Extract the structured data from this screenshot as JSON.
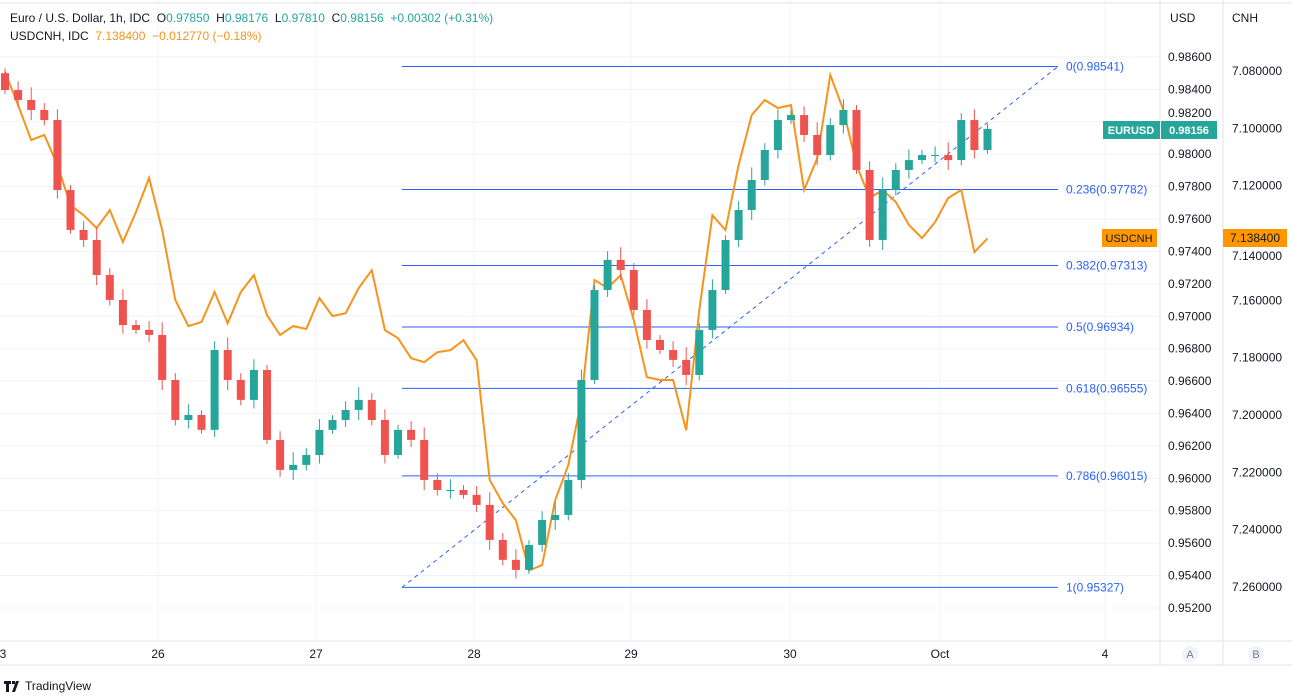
{
  "legend": {
    "main_title": "Euro / U.S. Dollar, 1h, IDC",
    "o_label": "O",
    "o_value": "0.97850",
    "h_label": "H",
    "h_value": "0.98176",
    "l_label": "L",
    "l_value": "0.97810",
    "c_label": "C",
    "c_value": "0.98156",
    "change": "+0.00302 (+0.31%)",
    "compare_title": "USDCNH, IDC",
    "compare_value": "7.138400",
    "compare_change": "−0.012770 (−0.18%)"
  },
  "axes": {
    "usd_label": "USD",
    "cnh_label": "CNH",
    "x_labels": [
      "3",
      "26",
      "27",
      "28",
      "29",
      "30",
      "Oct",
      "4"
    ],
    "scale_a": "A",
    "scale_b": "B"
  },
  "badges": {
    "eurusd_name": "EURUSD",
    "eurusd_price": "0.98156",
    "usdcnh_name": "USDCNH",
    "usdcnh_price": "7.138400"
  },
  "brand": "TradingView",
  "colors": {
    "up": "#26a69a",
    "down": "#ef5350",
    "compare": "#f7931a",
    "fib": "#2962ff"
  },
  "chart_data": {
    "type": "candlestick",
    "title": "Euro / U.S. Dollar, 1h, IDC",
    "usd_ticks": [
      "0.95200",
      "0.95400",
      "0.95600",
      "0.95800",
      "0.96000",
      "0.96200",
      "0.96400",
      "0.96600",
      "0.96800",
      "0.97000",
      "0.97200",
      "0.97400",
      "0.97600",
      "0.97800",
      "0.98000",
      "0.98200",
      "0.98400",
      "0.98600"
    ],
    "cnh_ticks": [
      "7.080000",
      "7.100000",
      "7.120000",
      "7.140000",
      "7.160000",
      "7.180000",
      "7.200000",
      "7.220000",
      "7.240000",
      "7.260000"
    ],
    "usd_range": [
      0.952,
      0.986
    ],
    "cnh_range": [
      7.08,
      7.26
    ],
    "first_open": 0.985,
    "eurusd_closes": [
      0.98396,
      0.98335,
      0.98273,
      0.98211,
      0.97779,
      0.97533,
      0.97471,
      0.97255,
      0.97101,
      0.96946,
      0.96916,
      0.96885,
      0.96607,
      0.9636,
      0.96391,
      0.96299,
      0.96792,
      0.96607,
      0.96484,
      0.96669,
      0.96237,
      0.96052,
      0.96083,
      0.96144,
      0.96299,
      0.9636,
      0.96422,
      0.96484,
      0.9636,
      0.96144,
      0.96299,
      0.96237,
      0.9599,
      0.95928,
      0.95928,
      0.95898,
      0.95836,
      0.9562,
      0.95497,
      0.95435,
      0.95589,
      0.95743,
      0.95774,
      0.9599,
      0.96607,
      0.97162,
      0.97348,
      0.97286,
      0.97039,
      0.96854,
      0.96792,
      0.96731,
      0.96638,
      0.96916,
      0.97162,
      0.97471,
      0.97656,
      0.97841,
      0.98026,
      0.98211,
      0.98242,
      0.98119,
      0.97995,
      0.9818,
      0.98273,
      0.97903,
      0.97471,
      0.97779,
      0.97903,
      0.97964,
      0.97995,
      0.97995,
      0.97964,
      0.98211,
      0.98026,
      0.98156
    ],
    "usdcnh_values": [
      7.0803,
      7.0919,
      7.1041,
      7.1023,
      7.1128,
      7.1268,
      7.1303,
      7.1348,
      7.1285,
      7.1397,
      7.1292,
      7.1173,
      7.1355,
      7.1599,
      7.169,
      7.1676,
      7.1571,
      7.168,
      7.1571,
      7.1512,
      7.1652,
      7.1721,
      7.169,
      7.17,
      7.1592,
      7.1655,
      7.1645,
      7.1557,
      7.1495,
      7.1704,
      7.1732,
      7.1802,
      7.1816,
      7.1781,
      7.1774,
      7.1739,
      7.1809,
      7.2227,
      7.2308,
      7.2367,
      7.2542,
      7.2524,
      7.2297,
      7.2175,
      7.1948,
      7.1529,
      7.1557,
      7.1512,
      7.1669,
      7.1868,
      7.1878,
      7.1878,
      7.2053,
      7.1634,
      7.1303,
      7.1355,
      7.1128,
      7.0954,
      7.0901,
      7.0929,
      7.0919,
      7.1215,
      7.1104,
      7.0814,
      7.0936,
      7.1128,
      7.1243,
      7.1215,
      7.1257,
      7.1337,
      7.1383,
      7.1327,
      7.1243,
      7.1215,
      7.1432,
      7.1384
    ],
    "fib_levels": [
      {
        "ratio": "0",
        "price": 0.98541,
        "label": "0(0.98541)"
      },
      {
        "ratio": "0.236",
        "price": 0.97782,
        "label": "0.236(0.97782)"
      },
      {
        "ratio": "0.382",
        "price": 0.97313,
        "label": "0.382(0.97313)"
      },
      {
        "ratio": "0.5",
        "price": 0.96934,
        "label": "0.5(0.96934)"
      },
      {
        "ratio": "0.618",
        "price": 0.96555,
        "label": "0.618(0.96555)"
      },
      {
        "ratio": "0.786",
        "price": 0.96015,
        "label": "0.786(0.96015)"
      },
      {
        "ratio": "1",
        "price": 0.95327,
        "label": "1(0.95327)"
      }
    ]
  }
}
